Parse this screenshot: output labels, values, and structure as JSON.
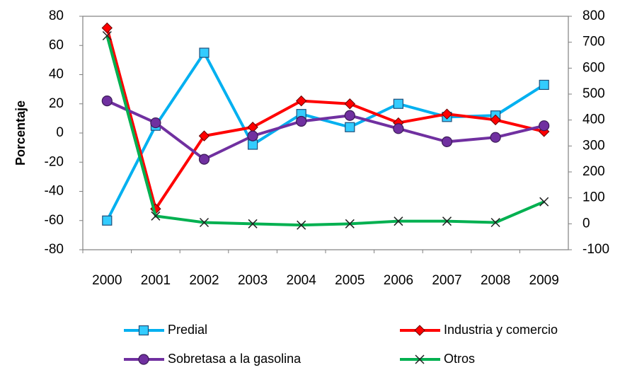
{
  "chart_data": {
    "type": "line",
    "y_label": "Porcentaje",
    "categories": [
      "2000",
      "2001",
      "2002",
      "2003",
      "2004",
      "2005",
      "2006",
      "2007",
      "2008",
      "2009"
    ],
    "ylim": [
      -80,
      80
    ],
    "yticks": [
      -80,
      -60,
      -40,
      -20,
      0,
      20,
      40,
      60,
      80
    ],
    "y2lim": [
      -100,
      800
    ],
    "y2ticks": [
      -100,
      0,
      100,
      200,
      300,
      400,
      500,
      600,
      700,
      800
    ],
    "grid": false,
    "series": [
      {
        "name": "Predial",
        "color": "#00b0f0",
        "marker": "square",
        "values": [
          -60,
          5,
          55,
          -8,
          13,
          4,
          20,
          11,
          12,
          33
        ]
      },
      {
        "name": "Industria y comercio",
        "color": "#ff0000",
        "marker": "diamond",
        "values": [
          72,
          -52,
          -2,
          4,
          22,
          20,
          7,
          13,
          9,
          1
        ]
      },
      {
        "name": "Sobretasa a la gasolina",
        "color": "#7030a0",
        "marker": "circle",
        "values": [
          22,
          7,
          -18,
          -2,
          8,
          12,
          3,
          -6,
          -3,
          5
        ]
      },
      {
        "name": "Otros",
        "color": "#00b050",
        "marker": "x",
        "axis": "y2",
        "values": [
          725,
          30,
          5,
          0,
          -5,
          0,
          10,
          10,
          5,
          85
        ]
      }
    ]
  }
}
